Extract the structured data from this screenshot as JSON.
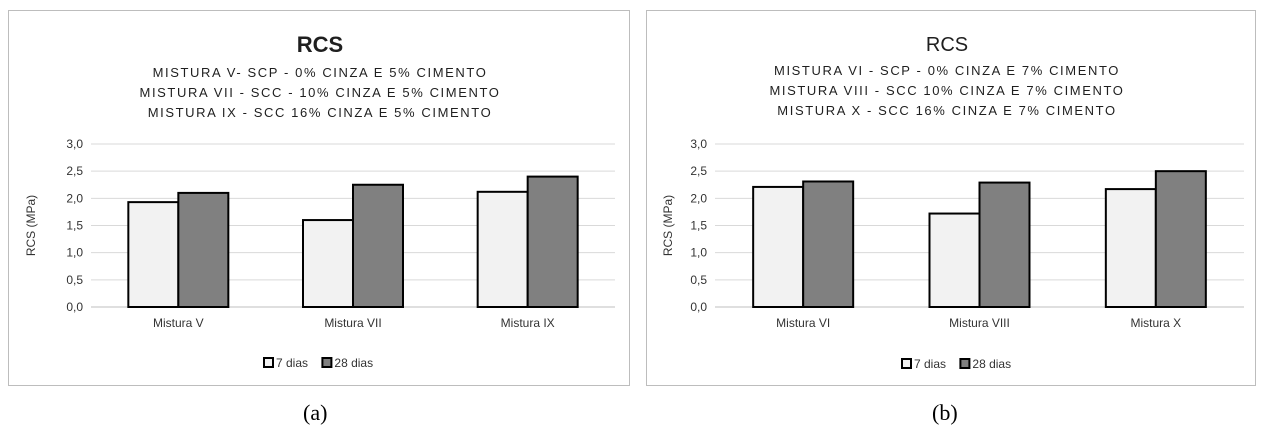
{
  "chart_data": [
    {
      "type": "bar",
      "title": "RCS",
      "title_bold": true,
      "subtitle": [
        "MISTURA V- SCP - 0% CINZA E 5% CIMENTO",
        "MISTURA VII - SCC - 10% CINZA E 5% CIMENTO",
        "MISTURA IX - SCC 16% CINZA E 5% CIMENTO"
      ],
      "ylabel": "RCS (MPa)",
      "xlabel": "",
      "ylim": [
        0,
        3.0
      ],
      "yticks": [
        "0,0",
        "0,5",
        "1,0",
        "1,5",
        "2,0",
        "2,5",
        "3,0"
      ],
      "categories": [
        "Mistura V",
        "Mistura VII",
        "Mistura IX"
      ],
      "series": [
        {
          "name": "7 dias",
          "values": [
            1.93,
            1.6,
            2.12
          ],
          "color": "#f2f2f2"
        },
        {
          "name": "28 dias",
          "values": [
            2.1,
            2.25,
            2.4
          ],
          "color": "#808080"
        }
      ],
      "grid": true,
      "legend_position": "bottom"
    },
    {
      "type": "bar",
      "title": "RCS",
      "title_bold": false,
      "subtitle": [
        "MISTURA VI - SCP - 0% CINZA E 7% CIMENTO",
        "MISTURA VIII - SCC 10% CINZA E 7% CIMENTO",
        "MISTURA X - SCC 16% CINZA E 7% CIMENTO"
      ],
      "ylabel": "RCS (MPa)",
      "xlabel": "",
      "ylim": [
        0,
        3.0
      ],
      "yticks": [
        "0,0",
        "0,5",
        "1,0",
        "1,5",
        "2,0",
        "2,5",
        "3,0"
      ],
      "categories": [
        "Mistura VI",
        "Mistura VIII",
        "Mistura X"
      ],
      "series": [
        {
          "name": "7 dias",
          "values": [
            2.21,
            1.72,
            2.17
          ],
          "color": "#f2f2f2"
        },
        {
          "name": "28 dias",
          "values": [
            2.31,
            2.29,
            2.5
          ],
          "color": "#808080"
        }
      ],
      "grid": true,
      "legend_position": "bottom"
    }
  ],
  "captions": {
    "a": "(a)",
    "b": "(b)"
  }
}
